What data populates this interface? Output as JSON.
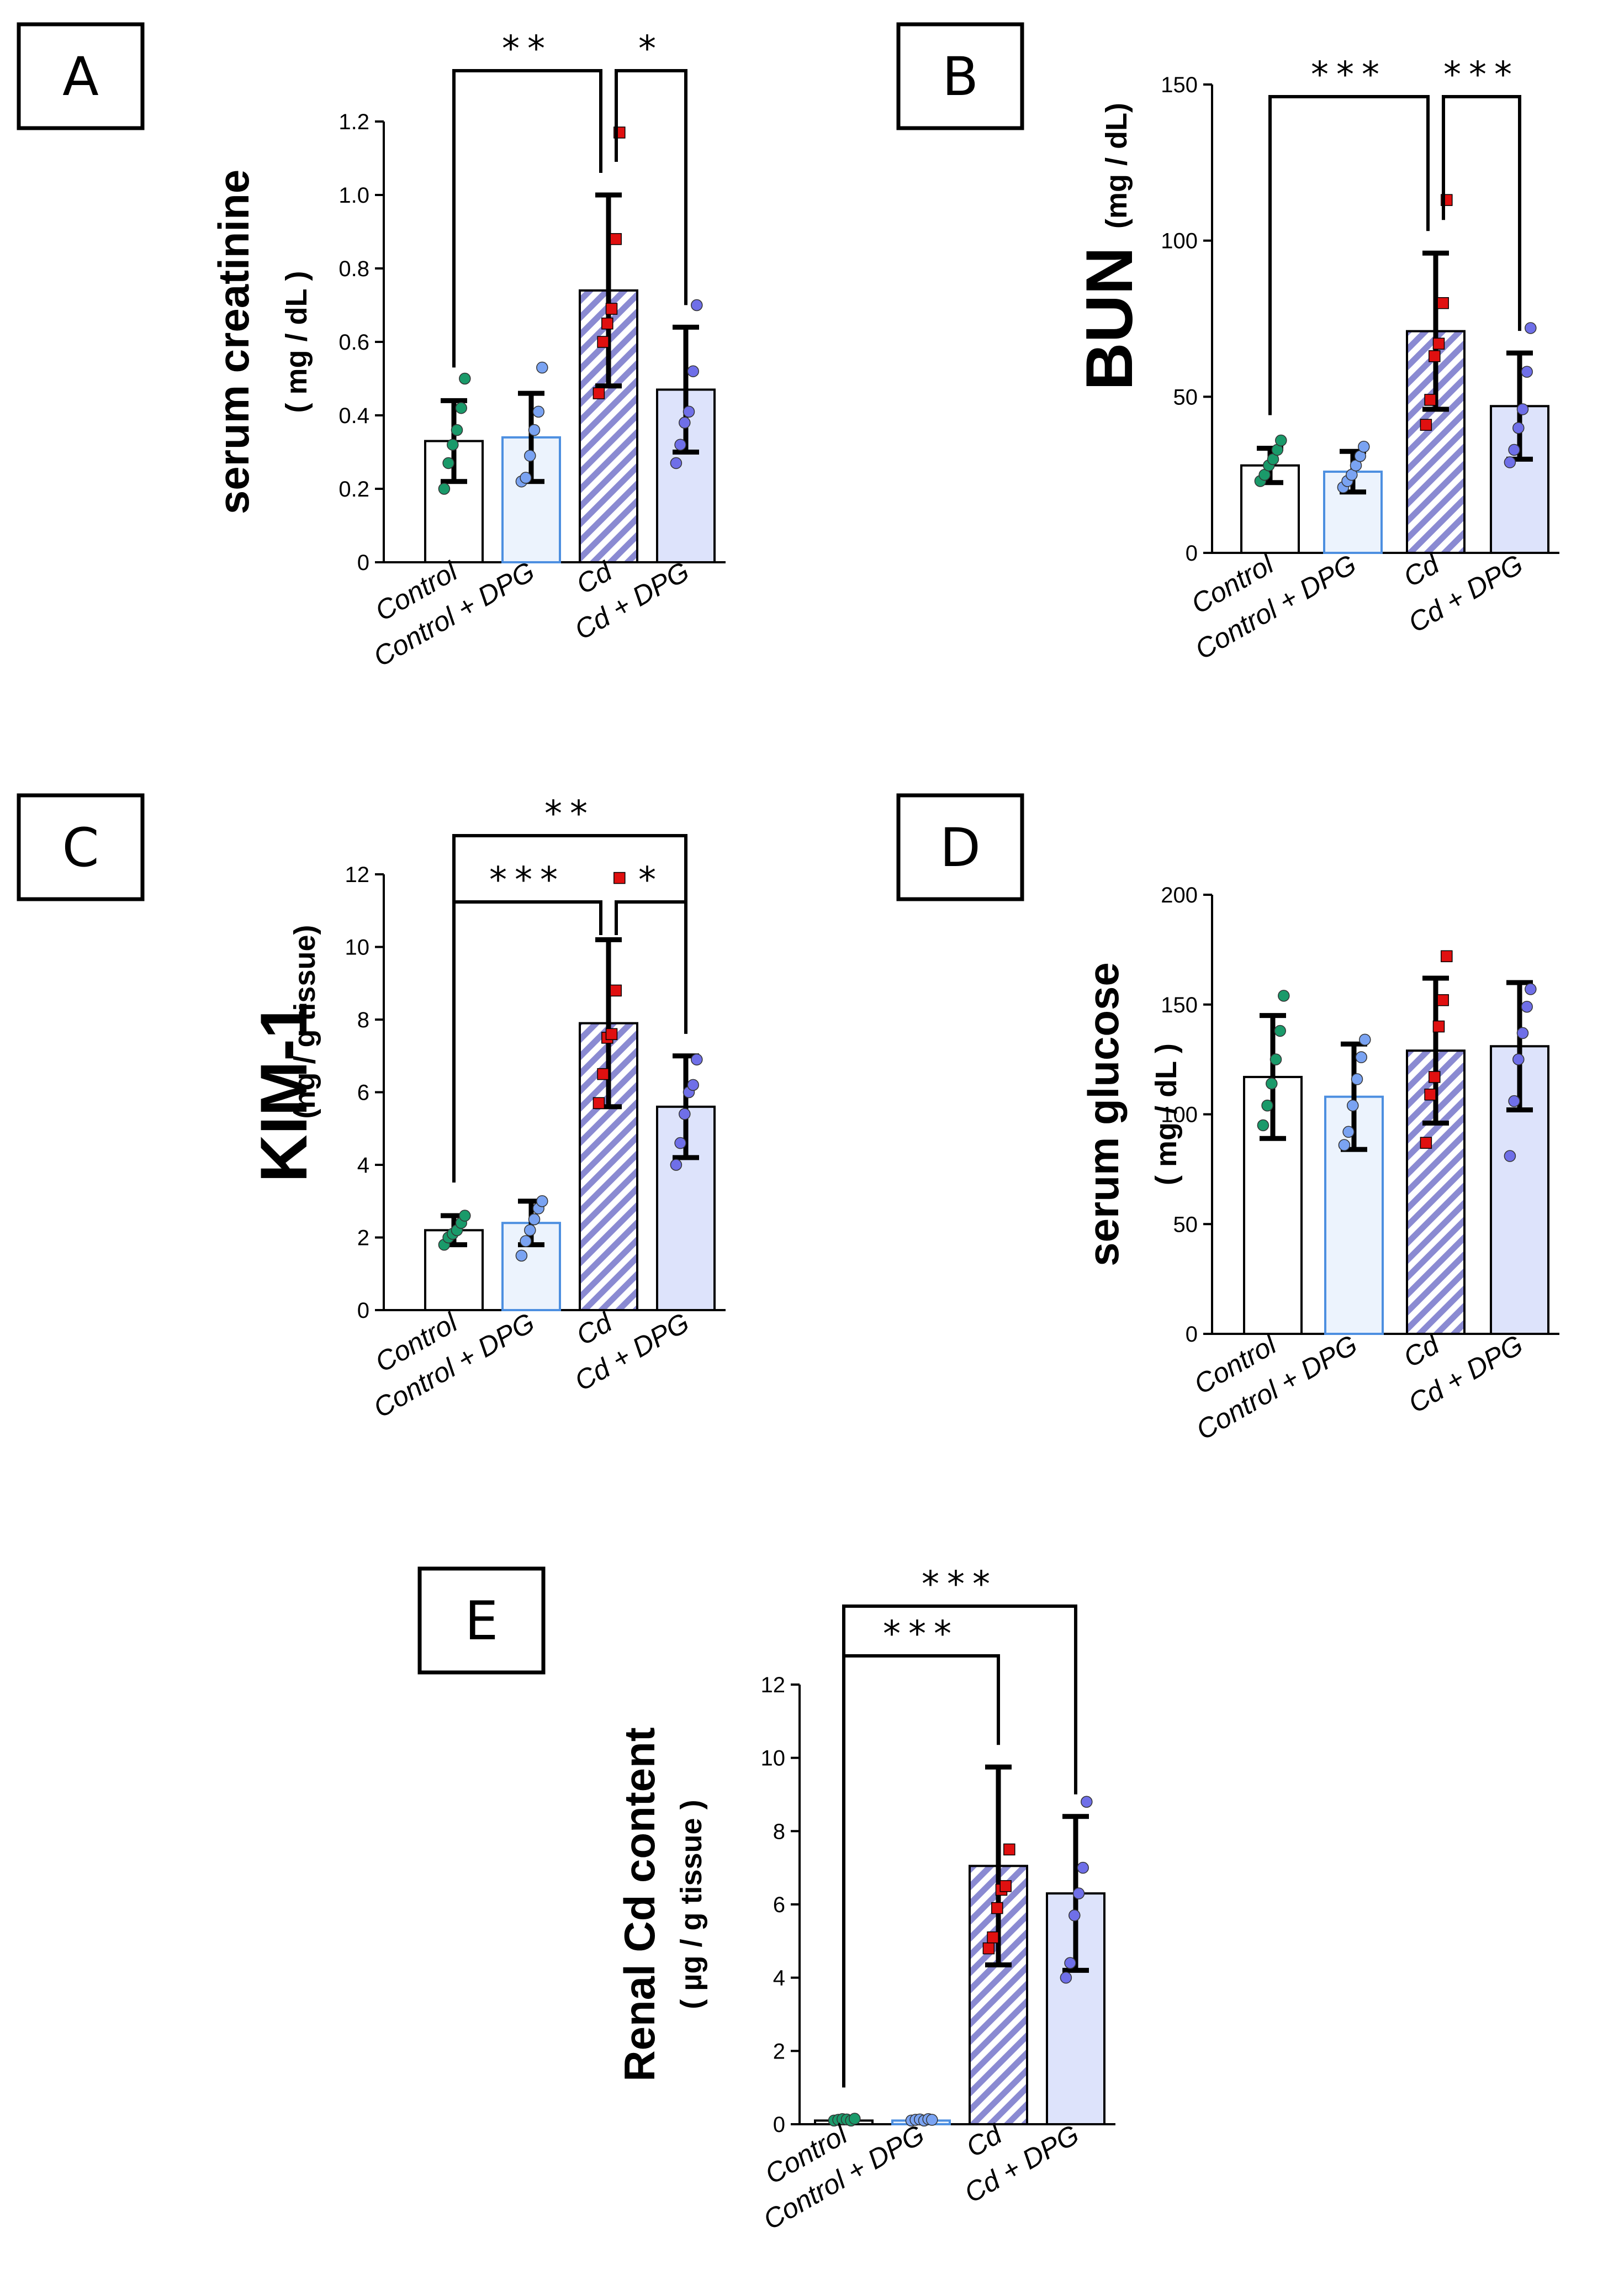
{
  "colors": {
    "control_point": "#1a9a6a",
    "dpg_point": "#7aa3f2",
    "cd_point": "#e01010",
    "cddpg_point": "#6f6fe8",
    "dpg_bar_fill": "#ecf3fd",
    "dpg_bar_stroke": "#4d8fe0",
    "cd_hatch": "#8a8ad2",
    "cddpg_bar_fill": "#dde3fb"
  },
  "chart_data": [
    {
      "panel": "A",
      "type": "bar",
      "categories": [
        "Control",
        "Control + DPG",
        "Cd",
        "Cd + DPG"
      ],
      "means": [
        0.33,
        0.34,
        0.74,
        0.47
      ],
      "errors": [
        0.11,
        0.12,
        0.26,
        0.17
      ],
      "points": [
        [
          0.2,
          0.27,
          0.32,
          0.36,
          0.42,
          0.5
        ],
        [
          0.22,
          0.23,
          0.29,
          0.36,
          0.41,
          0.53
        ],
        [
          0.46,
          0.6,
          0.65,
          0.69,
          0.88,
          1.17
        ],
        [
          0.27,
          0.32,
          0.38,
          0.41,
          0.52,
          0.7
        ]
      ],
      "ylabel": "serum creatinine",
      "yunit": "( mg / dL )",
      "ylim": [
        0,
        1.2
      ],
      "yticks": [
        "0",
        "0.2",
        "0.4",
        "0.6",
        "0.8",
        "1.0",
        "1.2"
      ],
      "yticks_values": [
        0,
        0.2,
        0.4,
        0.6,
        0.8,
        1.0,
        1.2
      ],
      "significance": [
        {
          "from": 0,
          "to": 2,
          "label": "**"
        },
        {
          "from": 2,
          "to": 3,
          "label": "*"
        }
      ]
    },
    {
      "panel": "B",
      "type": "bar",
      "categories": [
        "Control",
        "Control + DPG",
        "Cd",
        "Cd + DPG"
      ],
      "means": [
        28,
        26,
        71,
        47
      ],
      "errors": [
        5.5,
        6.5,
        25,
        17
      ],
      "points": [
        [
          23,
          25,
          28,
          30,
          33,
          36
        ],
        [
          21,
          23,
          25,
          28,
          31,
          34
        ],
        [
          41,
          49,
          63,
          67,
          80,
          113
        ],
        [
          29,
          33,
          40,
          46,
          58,
          72
        ]
      ],
      "ylabel": "BUN",
      "yunit": "(mg / dL)",
      "ylim": [
        0,
        150
      ],
      "yticks": [
        "0",
        "50",
        "100",
        "150"
      ],
      "yticks_values": [
        0,
        50,
        100,
        150
      ],
      "significance": [
        {
          "from": 0,
          "to": 2,
          "label": "***"
        },
        {
          "from": 2,
          "to": 3,
          "label": "***"
        }
      ]
    },
    {
      "panel": "C",
      "type": "bar",
      "categories": [
        "Control",
        "Control + DPG",
        "Cd",
        "Cd + DPG"
      ],
      "means": [
        2.2,
        2.4,
        7.9,
        5.6
      ],
      "errors": [
        0.4,
        0.6,
        2.3,
        1.4
      ],
      "points": [
        [
          1.8,
          2.0,
          2.1,
          2.2,
          2.4,
          2.6
        ],
        [
          1.5,
          1.9,
          2.2,
          2.5,
          2.8,
          3.0
        ],
        [
          5.7,
          6.5,
          7.5,
          7.6,
          8.8,
          11.9
        ],
        [
          4.0,
          4.6,
          5.4,
          6.0,
          6.2,
          6.9
        ]
      ],
      "ylabel": "KIM-1",
      "yunit": "(ng / g tissue)",
      "ylim": [
        0,
        12
      ],
      "yticks": [
        "0",
        "2",
        "4",
        "6",
        "8",
        "10",
        "12"
      ],
      "yticks_values": [
        0,
        2,
        4,
        6,
        8,
        10,
        12
      ],
      "significance": [
        {
          "from": 0,
          "to": 2,
          "label": "***"
        },
        {
          "from": 2,
          "to": 3,
          "label": "*"
        },
        {
          "from": 0,
          "to": 3,
          "label": "**"
        }
      ]
    },
    {
      "panel": "D",
      "type": "bar",
      "categories": [
        "Control",
        "Control + DPG",
        "Cd",
        "Cd + DPG"
      ],
      "means": [
        117,
        108,
        129,
        131
      ],
      "errors": [
        28,
        24,
        33,
        29
      ],
      "points": [
        [
          95,
          104,
          114,
          125,
          138,
          154
        ],
        [
          86,
          92,
          104,
          116,
          126,
          134
        ],
        [
          87,
          109,
          117,
          140,
          152,
          172
        ],
        [
          81,
          106,
          125,
          137,
          149,
          157
        ]
      ],
      "ylabel": "serum glucose",
      "yunit": "( mg / dL )",
      "ylim": [
        0,
        200
      ],
      "yticks": [
        "0",
        "50",
        "100",
        "150",
        "200"
      ],
      "yticks_values": [
        0,
        50,
        100,
        150,
        200
      ],
      "significance": []
    },
    {
      "panel": "E",
      "type": "bar",
      "categories": [
        "Control",
        "Control + DPG",
        "Cd",
        "Cd + DPG"
      ],
      "means": [
        0.1,
        0.1,
        7.05,
        6.3
      ],
      "errors": [
        0.0,
        0.0,
        2.7,
        2.1
      ],
      "points": [
        [
          0.1,
          0.12,
          0.14,
          0.13,
          0.1,
          0.15
        ],
        [
          0.1,
          0.12,
          0.13,
          0.1,
          0.14,
          0.12
        ],
        [
          4.8,
          5.1,
          5.9,
          6.4,
          6.5,
          7.5
        ],
        [
          4.0,
          4.4,
          5.7,
          6.3,
          7.0,
          8.8
        ]
      ],
      "ylabel": "Renal Cd content",
      "yunit": "( µg / g tissue )",
      "ylim": [
        0,
        12
      ],
      "yticks": [
        "0",
        "2",
        "4",
        "6",
        "8",
        "10",
        "12"
      ],
      "yticks_values": [
        0,
        2,
        4,
        6,
        8,
        10,
        12
      ],
      "significance": [
        {
          "from": 0,
          "to": 2,
          "label": "***"
        },
        {
          "from": 0,
          "to": 3,
          "label": "***"
        }
      ]
    }
  ]
}
